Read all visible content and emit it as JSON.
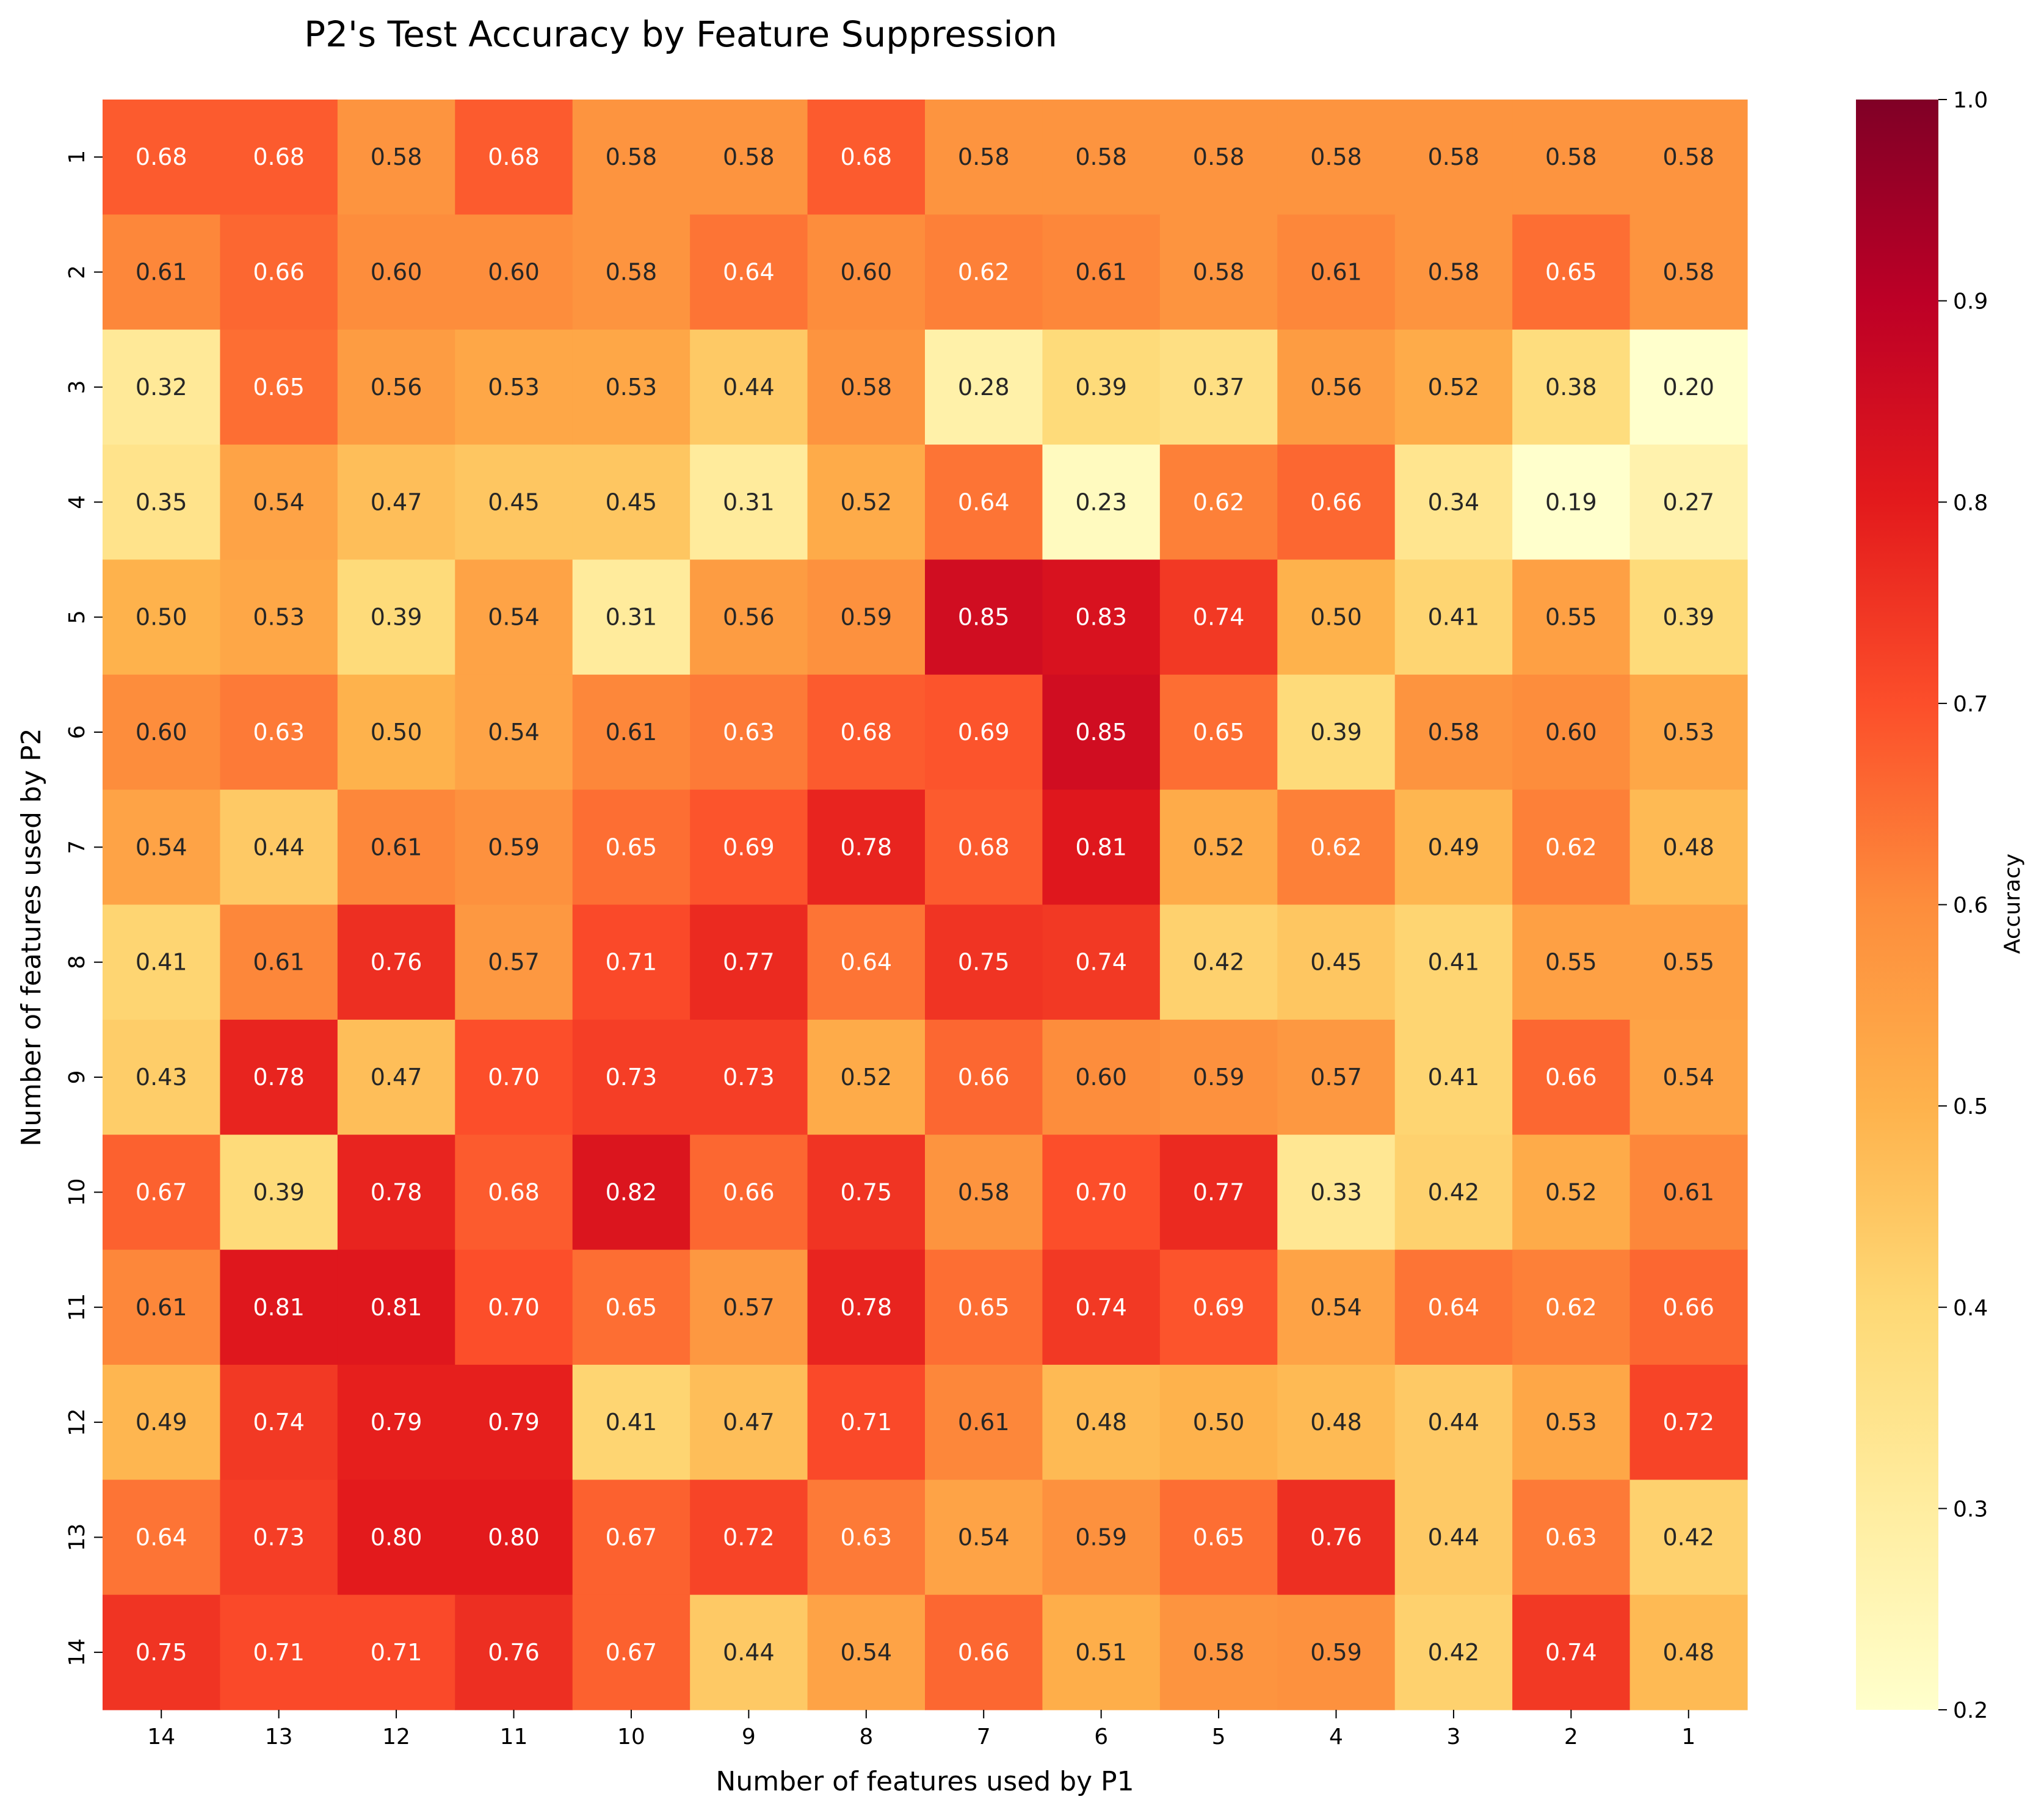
{
  "chart_data": {
    "type": "heatmap",
    "title": "P2's Test Accuracy by Feature Suppression",
    "xlabel": "Number of features used by P1",
    "ylabel": "Number of features used by P2",
    "x_categories": [
      "14",
      "13",
      "12",
      "11",
      "10",
      "9",
      "8",
      "7",
      "6",
      "5",
      "4",
      "3",
      "2",
      "1"
    ],
    "y_categories": [
      "1",
      "2",
      "3",
      "4",
      "5",
      "6",
      "7",
      "8",
      "9",
      "10",
      "11",
      "12",
      "13",
      "14"
    ],
    "values": [
      [
        0.68,
        0.68,
        0.58,
        0.68,
        0.58,
        0.58,
        0.68,
        0.58,
        0.58,
        0.58,
        0.58,
        0.58,
        0.58,
        0.58
      ],
      [
        0.61,
        0.66,
        0.6,
        0.6,
        0.58,
        0.64,
        0.6,
        0.62,
        0.61,
        0.58,
        0.61,
        0.58,
        0.65,
        0.58
      ],
      [
        0.32,
        0.65,
        0.56,
        0.53,
        0.53,
        0.44,
        0.58,
        0.28,
        0.39,
        0.37,
        0.56,
        0.52,
        0.38,
        0.2
      ],
      [
        0.35,
        0.54,
        0.47,
        0.45,
        0.45,
        0.31,
        0.52,
        0.64,
        0.23,
        0.62,
        0.66,
        0.34,
        0.19,
        0.27
      ],
      [
        0.5,
        0.53,
        0.39,
        0.54,
        0.31,
        0.56,
        0.59,
        0.85,
        0.83,
        0.74,
        0.5,
        0.41,
        0.55,
        0.39
      ],
      [
        0.6,
        0.63,
        0.5,
        0.54,
        0.61,
        0.63,
        0.68,
        0.69,
        0.85,
        0.65,
        0.39,
        0.58,
        0.6,
        0.53
      ],
      [
        0.54,
        0.44,
        0.61,
        0.59,
        0.65,
        0.69,
        0.78,
        0.68,
        0.81,
        0.52,
        0.62,
        0.49,
        0.62,
        0.48
      ],
      [
        0.41,
        0.61,
        0.76,
        0.57,
        0.71,
        0.77,
        0.64,
        0.75,
        0.74,
        0.42,
        0.45,
        0.41,
        0.55,
        0.55
      ],
      [
        0.43,
        0.78,
        0.47,
        0.7,
        0.73,
        0.73,
        0.52,
        0.66,
        0.6,
        0.59,
        0.57,
        0.41,
        0.66,
        0.54
      ],
      [
        0.67,
        0.39,
        0.78,
        0.68,
        0.82,
        0.66,
        0.75,
        0.58,
        0.7,
        0.77,
        0.33,
        0.42,
        0.52,
        0.61
      ],
      [
        0.61,
        0.81,
        0.81,
        0.7,
        0.65,
        0.57,
        0.78,
        0.65,
        0.74,
        0.69,
        0.54,
        0.64,
        0.62,
        0.66
      ],
      [
        0.49,
        0.74,
        0.79,
        0.79,
        0.41,
        0.47,
        0.71,
        0.61,
        0.48,
        0.5,
        0.48,
        0.44,
        0.53,
        0.72
      ],
      [
        0.64,
        0.73,
        0.8,
        0.8,
        0.67,
        0.72,
        0.63,
        0.54,
        0.59,
        0.65,
        0.76,
        0.44,
        0.63,
        0.42
      ],
      [
        0.75,
        0.71,
        0.71,
        0.76,
        0.67,
        0.44,
        0.54,
        0.66,
        0.51,
        0.58,
        0.59,
        0.42,
        0.74,
        0.48
      ]
    ],
    "colorbar": {
      "label": "Accuracy",
      "vmin": 0.2,
      "vmax": 1.0,
      "ticks": [
        "0.2",
        "0.3",
        "0.4",
        "0.5",
        "0.6",
        "0.7",
        "0.8",
        "0.9",
        "1.0"
      ],
      "colormap": "YlOrRd"
    },
    "value_format": "2 decimals",
    "grid": false
  }
}
